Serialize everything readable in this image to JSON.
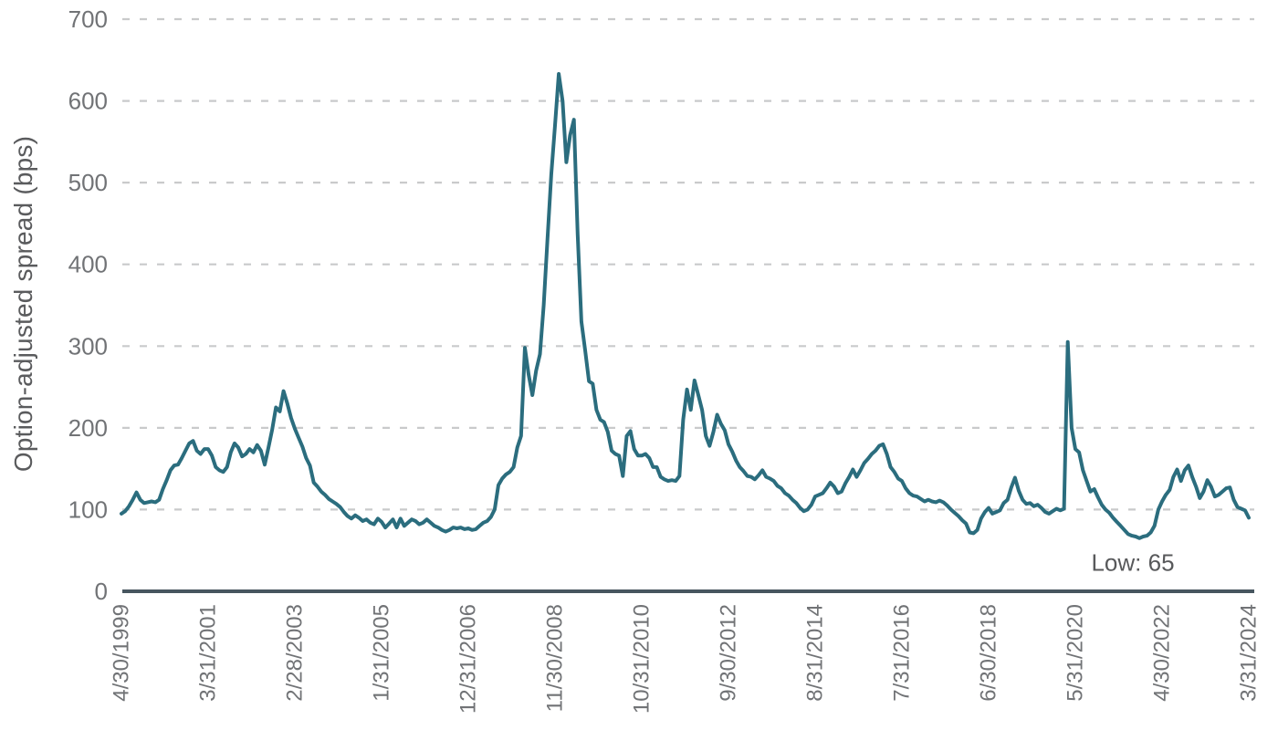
{
  "chart_data": {
    "type": "line",
    "title": "",
    "xlabel": "",
    "ylabel": "Option-adjusted spread (bps)",
    "ylim": [
      0,
      700
    ],
    "y_ticks": [
      0,
      100,
      200,
      300,
      400,
      500,
      600,
      700
    ],
    "grid": "dashed horizontal",
    "legend": "none",
    "x_tick_labels": [
      "4/30/1999",
      "3/31/2001",
      "2/28/2003",
      "1/31/2005",
      "12/31/2006",
      "11/30/2008",
      "10/31/2010",
      "9/30/2012",
      "8/31/2014",
      "7/31/2016",
      "6/30/2018",
      "5/31/2020",
      "4/30/2022",
      "3/31/2024"
    ],
    "x_tick_month_index": [
      0,
      23,
      46,
      69,
      92,
      115,
      138,
      161,
      184,
      207,
      230,
      253,
      276,
      299
    ],
    "annotation": {
      "text": "Low: 65",
      "low_value": 65
    },
    "peak_value": 633,
    "colors": {
      "line": "#2B6D7E",
      "axis": "#47565F",
      "grid": "#C9CACB",
      "tick_label": "#717376",
      "text": "#58595B"
    },
    "series": [
      {
        "name": "Option-adjusted spread (bps)",
        "start_label": "4/30/1999",
        "end_label": "3/31/2024",
        "frequency": "monthly",
        "values": [
          95,
          98,
          104,
          112,
          121,
          112,
          108,
          109,
          110,
          109,
          112,
          125,
          136,
          148,
          154,
          155,
          163,
          172,
          181,
          184,
          172,
          168,
          174,
          174,
          166,
          152,
          148,
          146,
          152,
          170,
          181,
          176,
          165,
          168,
          174,
          170,
          179,
          172,
          155,
          176,
          198,
          225,
          220,
          245,
          230,
          212,
          199,
          188,
          177,
          163,
          154,
          133,
          128,
          122,
          118,
          113,
          110,
          107,
          103,
          97,
          92,
          89,
          93,
          90,
          86,
          88,
          84,
          82,
          89,
          85,
          78,
          83,
          88,
          78,
          89,
          80,
          84,
          88,
          86,
          82,
          84,
          88,
          84,
          80,
          78,
          75,
          73,
          75,
          78,
          77,
          78,
          76,
          77,
          75,
          76,
          80,
          84,
          86,
          91,
          100,
          130,
          138,
          143,
          146,
          152,
          176,
          190,
          298,
          265,
          240,
          270,
          290,
          350,
          430,
          510,
          570,
          633,
          600,
          525,
          558,
          577,
          437,
          330,
          295,
          257,
          254,
          222,
          210,
          207,
          195,
          172,
          168,
          166,
          141,
          190,
          196,
          174,
          166,
          166,
          168,
          163,
          152,
          152,
          140,
          137,
          135,
          136,
          135,
          141,
          210,
          247,
          222,
          258,
          240,
          222,
          190,
          178,
          195,
          216,
          205,
          197,
          180,
          171,
          160,
          152,
          147,
          141,
          140,
          137,
          142,
          148,
          140,
          138,
          135,
          129,
          126,
          120,
          117,
          112,
          108,
          102,
          98,
          100,
          106,
          116,
          118,
          120,
          126,
          133,
          128,
          120,
          122,
          132,
          140,
          149,
          140,
          148,
          157,
          162,
          168,
          172,
          178,
          180,
          168,
          152,
          146,
          138,
          135,
          126,
          120,
          117,
          116,
          113,
          110,
          112,
          110,
          109,
          111,
          109,
          105,
          100,
          96,
          92,
          87,
          83,
          72,
          71,
          75,
          89,
          97,
          102,
          95,
          97,
          99,
          108,
          112,
          127,
          139,
          123,
          112,
          107,
          108,
          104,
          106,
          102,
          97,
          95,
          98,
          101,
          99,
          101,
          305,
          200,
          174,
          170,
          148,
          135,
          122,
          125,
          115,
          106,
          100,
          96,
          90,
          85,
          80,
          75,
          70,
          68,
          67,
          65,
          67,
          68,
          72,
          80,
          100,
          110,
          118,
          124,
          140,
          149,
          135,
          148,
          154,
          140,
          128,
          114,
          122,
          136,
          128,
          116,
          118,
          122,
          126,
          127,
          112,
          103,
          101,
          99,
          90
        ]
      }
    ]
  }
}
